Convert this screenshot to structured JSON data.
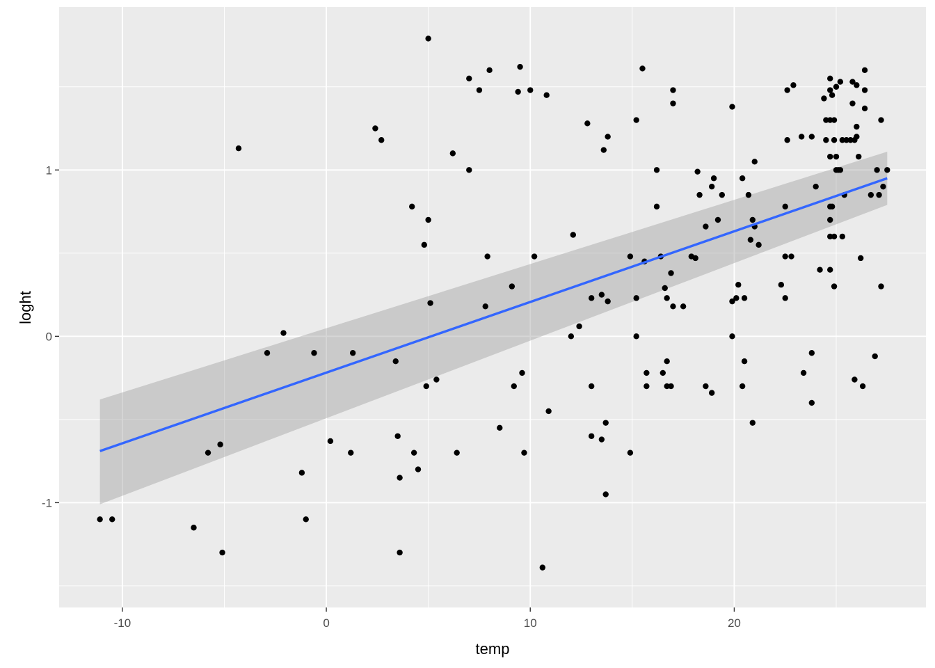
{
  "chart_data": {
    "type": "scatter",
    "xlabel": "temp",
    "ylabel": "loght",
    "xlim": [
      -13.1,
      29.4
    ],
    "ylim": [
      -1.63,
      1.98
    ],
    "x_ticks": [
      -10,
      0,
      10,
      20
    ],
    "x_tick_labels": [
      "-10",
      "0",
      "10",
      "20"
    ],
    "y_ticks": [
      -1,
      0,
      1
    ],
    "y_tick_labels": [
      "-1",
      "0",
      "1"
    ],
    "grid": true,
    "legend": "none",
    "colors": {
      "panel_background": "#ebebeb",
      "grid_major": "#ffffff",
      "points": "#000000",
      "smooth_line": "#3366ff",
      "confidence_band": "#999999"
    },
    "points": [
      [
        -11.1,
        -1.1
      ],
      [
        -10.5,
        -1.1
      ],
      [
        -6.5,
        -1.15
      ],
      [
        -5.8,
        -0.7
      ],
      [
        -5.2,
        -0.65
      ],
      [
        -5.1,
        -1.3
      ],
      [
        -4.3,
        1.13
      ],
      [
        -2.9,
        -0.1
      ],
      [
        -2.1,
        0.02
      ],
      [
        -1.2,
        -0.82
      ],
      [
        -1.0,
        -1.1
      ],
      [
        -0.6,
        -0.1
      ],
      [
        0.2,
        -0.63
      ],
      [
        1.2,
        -0.7
      ],
      [
        1.3,
        -0.1
      ],
      [
        2.4,
        1.25
      ],
      [
        2.7,
        1.18
      ],
      [
        3.4,
        -0.15
      ],
      [
        3.5,
        -0.6
      ],
      [
        3.6,
        -0.85
      ],
      [
        3.6,
        -1.3
      ],
      [
        4.2,
        0.78
      ],
      [
        4.3,
        -0.7
      ],
      [
        4.5,
        -0.8
      ],
      [
        4.8,
        0.55
      ],
      [
        4.9,
        -0.3
      ],
      [
        5.0,
        0.7
      ],
      [
        5.1,
        0.2
      ],
      [
        5.4,
        -0.26
      ],
      [
        5.0,
        1.79
      ],
      [
        6.2,
        1.1
      ],
      [
        6.4,
        -0.7
      ],
      [
        7.0,
        1.55
      ],
      [
        7.0,
        1.0
      ],
      [
        7.5,
        1.48
      ],
      [
        7.8,
        0.18
      ],
      [
        7.9,
        0.48
      ],
      [
        8.0,
        1.6
      ],
      [
        8.5,
        -0.55
      ],
      [
        9.1,
        0.3
      ],
      [
        9.2,
        -0.3
      ],
      [
        9.4,
        1.47
      ],
      [
        9.5,
        1.62
      ],
      [
        9.6,
        -0.22
      ],
      [
        9.7,
        -0.7
      ],
      [
        10.0,
        1.48
      ],
      [
        10.2,
        0.48
      ],
      [
        10.6,
        -1.39
      ],
      [
        10.8,
        1.45
      ],
      [
        10.9,
        -0.45
      ],
      [
        12.0,
        0.0
      ],
      [
        12.1,
        0.61
      ],
      [
        12.4,
        0.06
      ],
      [
        12.8,
        1.28
      ],
      [
        13.0,
        0.23
      ],
      [
        13.0,
        -0.3
      ],
      [
        13.0,
        -0.6
      ],
      [
        13.5,
        0.25
      ],
      [
        13.5,
        -0.62
      ],
      [
        13.6,
        1.12
      ],
      [
        13.7,
        -0.52
      ],
      [
        13.7,
        -0.95
      ],
      [
        13.8,
        0.21
      ],
      [
        13.8,
        1.2
      ],
      [
        14.9,
        -0.7
      ],
      [
        14.9,
        0.48
      ],
      [
        15.2,
        1.3
      ],
      [
        15.2,
        0.23
      ],
      [
        15.2,
        0.0
      ],
      [
        15.5,
        1.61
      ],
      [
        15.6,
        0.45
      ],
      [
        15.7,
        -0.22
      ],
      [
        15.7,
        -0.3
      ],
      [
        16.2,
        1.0
      ],
      [
        16.2,
        0.78
      ],
      [
        16.4,
        0.48
      ],
      [
        16.5,
        -0.22
      ],
      [
        16.6,
        0.29
      ],
      [
        16.7,
        -0.15
      ],
      [
        16.7,
        0.23
      ],
      [
        16.7,
        -0.3
      ],
      [
        16.9,
        -0.3
      ],
      [
        16.9,
        0.38
      ],
      [
        17.0,
        1.48
      ],
      [
        17.0,
        1.4
      ],
      [
        17.0,
        0.18
      ],
      [
        17.5,
        0.18
      ],
      [
        17.9,
        0.48
      ],
      [
        18.1,
        0.47
      ],
      [
        18.2,
        0.99
      ],
      [
        18.3,
        0.85
      ],
      [
        18.6,
        0.66
      ],
      [
        18.6,
        -0.3
      ],
      [
        18.9,
        0.9
      ],
      [
        18.9,
        -0.34
      ],
      [
        19.0,
        0.95
      ],
      [
        19.2,
        0.7
      ],
      [
        19.4,
        0.85
      ],
      [
        19.9,
        1.38
      ],
      [
        19.9,
        0.21
      ],
      [
        19.9,
        0.0
      ],
      [
        20.1,
        0.23
      ],
      [
        20.2,
        0.31
      ],
      [
        20.4,
        0.95
      ],
      [
        20.4,
        -0.3
      ],
      [
        20.5,
        0.23
      ],
      [
        20.5,
        -0.15
      ],
      [
        20.7,
        0.85
      ],
      [
        20.8,
        0.58
      ],
      [
        20.9,
        0.7
      ],
      [
        20.9,
        -0.52
      ],
      [
        21.0,
        1.05
      ],
      [
        21.0,
        0.66
      ],
      [
        21.2,
        0.55
      ],
      [
        22.3,
        0.31
      ],
      [
        22.5,
        0.78
      ],
      [
        22.5,
        0.48
      ],
      [
        22.5,
        0.23
      ],
      [
        22.6,
        1.48
      ],
      [
        22.6,
        1.18
      ],
      [
        22.8,
        0.48
      ],
      [
        22.9,
        1.51
      ],
      [
        23.3,
        1.2
      ],
      [
        23.4,
        -0.22
      ],
      [
        23.8,
        1.2
      ],
      [
        23.8,
        -0.1
      ],
      [
        23.8,
        -0.4
      ],
      [
        24.0,
        0.9
      ],
      [
        24.2,
        0.4
      ],
      [
        24.4,
        1.43
      ],
      [
        24.5,
        1.3
      ],
      [
        24.5,
        1.18
      ],
      [
        24.7,
        1.48
      ],
      [
        24.7,
        1.3
      ],
      [
        24.7,
        1.08
      ],
      [
        24.7,
        0.78
      ],
      [
        24.7,
        0.7
      ],
      [
        24.7,
        0.6
      ],
      [
        24.7,
        0.4
      ],
      [
        24.7,
        1.55
      ],
      [
        24.8,
        1.45
      ],
      [
        24.8,
        0.78
      ],
      [
        24.9,
        1.3
      ],
      [
        24.9,
        1.18
      ],
      [
        24.9,
        0.6
      ],
      [
        24.9,
        0.3
      ],
      [
        25.0,
        1.5
      ],
      [
        25.0,
        1.08
      ],
      [
        25.0,
        1.0
      ],
      [
        25.1,
        1.0
      ],
      [
        25.2,
        1.0
      ],
      [
        25.2,
        1.53
      ],
      [
        25.3,
        1.18
      ],
      [
        25.3,
        0.6
      ],
      [
        25.4,
        0.85
      ],
      [
        25.5,
        1.18
      ],
      [
        25.7,
        1.18
      ],
      [
        25.8,
        1.53
      ],
      [
        25.8,
        1.4
      ],
      [
        25.9,
        1.18
      ],
      [
        25.9,
        -0.26
      ],
      [
        26.0,
        1.51
      ],
      [
        26.0,
        1.26
      ],
      [
        26.0,
        1.2
      ],
      [
        26.1,
        1.08
      ],
      [
        26.2,
        0.47
      ],
      [
        26.3,
        -0.3
      ],
      [
        26.4,
        1.6
      ],
      [
        26.4,
        1.48
      ],
      [
        26.4,
        1.37
      ],
      [
        26.7,
        0.85
      ],
      [
        26.9,
        -0.12
      ],
      [
        27.0,
        1.0
      ],
      [
        27.1,
        0.85
      ],
      [
        27.2,
        0.3
      ],
      [
        27.2,
        1.3
      ],
      [
        27.3,
        0.9
      ],
      [
        27.5,
        1.0
      ]
    ],
    "smooth": {
      "method": "linear",
      "x_range": [
        -11.1,
        27.5
      ],
      "y_range": [
        -0.69,
        0.95
      ],
      "band_lower": [
        -1.01,
        0.79
      ],
      "band_upper": [
        -0.38,
        1.11
      ]
    }
  }
}
